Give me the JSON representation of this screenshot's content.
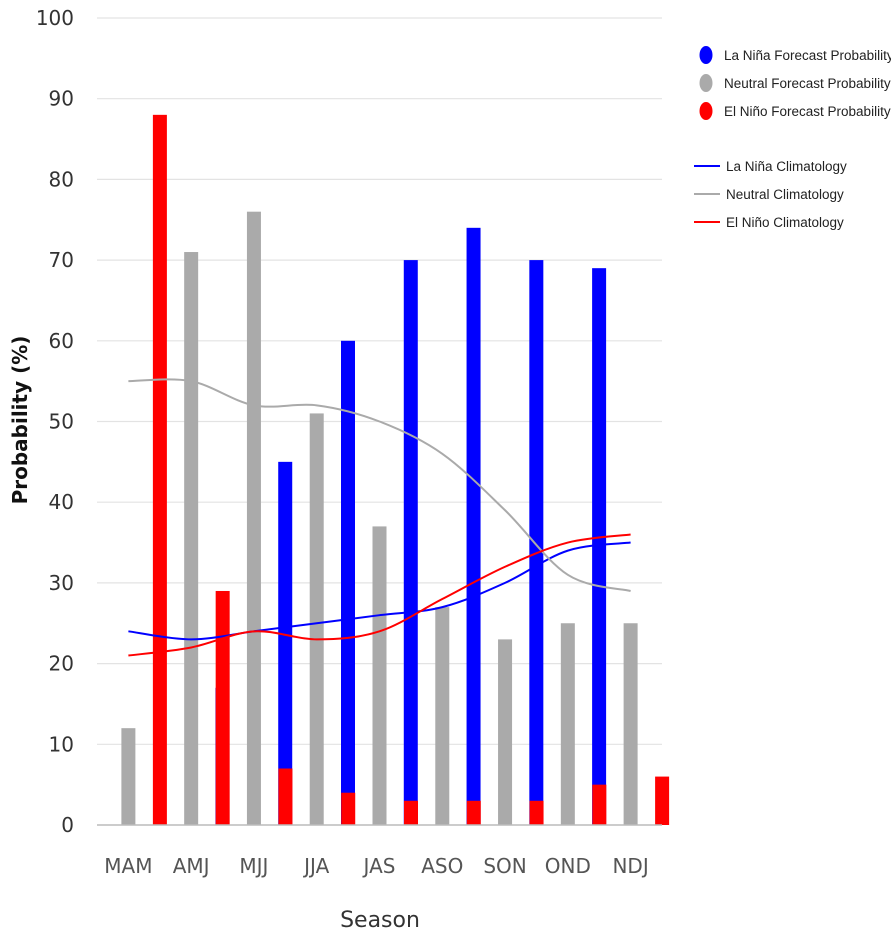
{
  "chart_data": {
    "type": "bar",
    "categories": [
      "MAM",
      "AMJ",
      "MJJ",
      "JJA",
      "JAS",
      "ASO",
      "SON",
      "OND",
      "NDJ"
    ],
    "xlabel": "Season",
    "ylabel": "Probability (%)",
    "ylim": [
      0,
      100
    ],
    "yticks": [
      0,
      10,
      20,
      30,
      40,
      50,
      60,
      70,
      80,
      90,
      100
    ],
    "grid": true,
    "legend_position": "top-right",
    "series": [
      {
        "name": "La Niña Forecast Probability",
        "kind": "bar",
        "color": "#0000ff",
        "values": [
          0,
          0,
          17,
          45,
          60,
          70,
          74,
          70,
          69
        ]
      },
      {
        "name": "Neutral Forecast Probability",
        "kind": "bar",
        "color": "#aaaaaa",
        "values": [
          12,
          71,
          76,
          51,
          37,
          27,
          23,
          25,
          25
        ]
      },
      {
        "name": "El Niño Forecast Probability",
        "kind": "bar",
        "color": "#ff0000",
        "values": [
          88,
          29,
          7,
          4,
          3,
          3,
          3,
          5,
          6
        ]
      },
      {
        "name": "La Niña Climatology",
        "kind": "line",
        "color": "#0000ff",
        "values": [
          24,
          23,
          24,
          25,
          26,
          27,
          30,
          34,
          35
        ]
      },
      {
        "name": "Neutral Climatology",
        "kind": "line",
        "color": "#aaaaaa",
        "values": [
          55,
          55,
          52,
          52,
          50,
          46,
          39,
          31,
          29
        ]
      },
      {
        "name": "El Niño Climatology",
        "kind": "line",
        "color": "#ff0000",
        "values": [
          21,
          22,
          24,
          23,
          24,
          28,
          32,
          35,
          36
        ]
      }
    ]
  }
}
